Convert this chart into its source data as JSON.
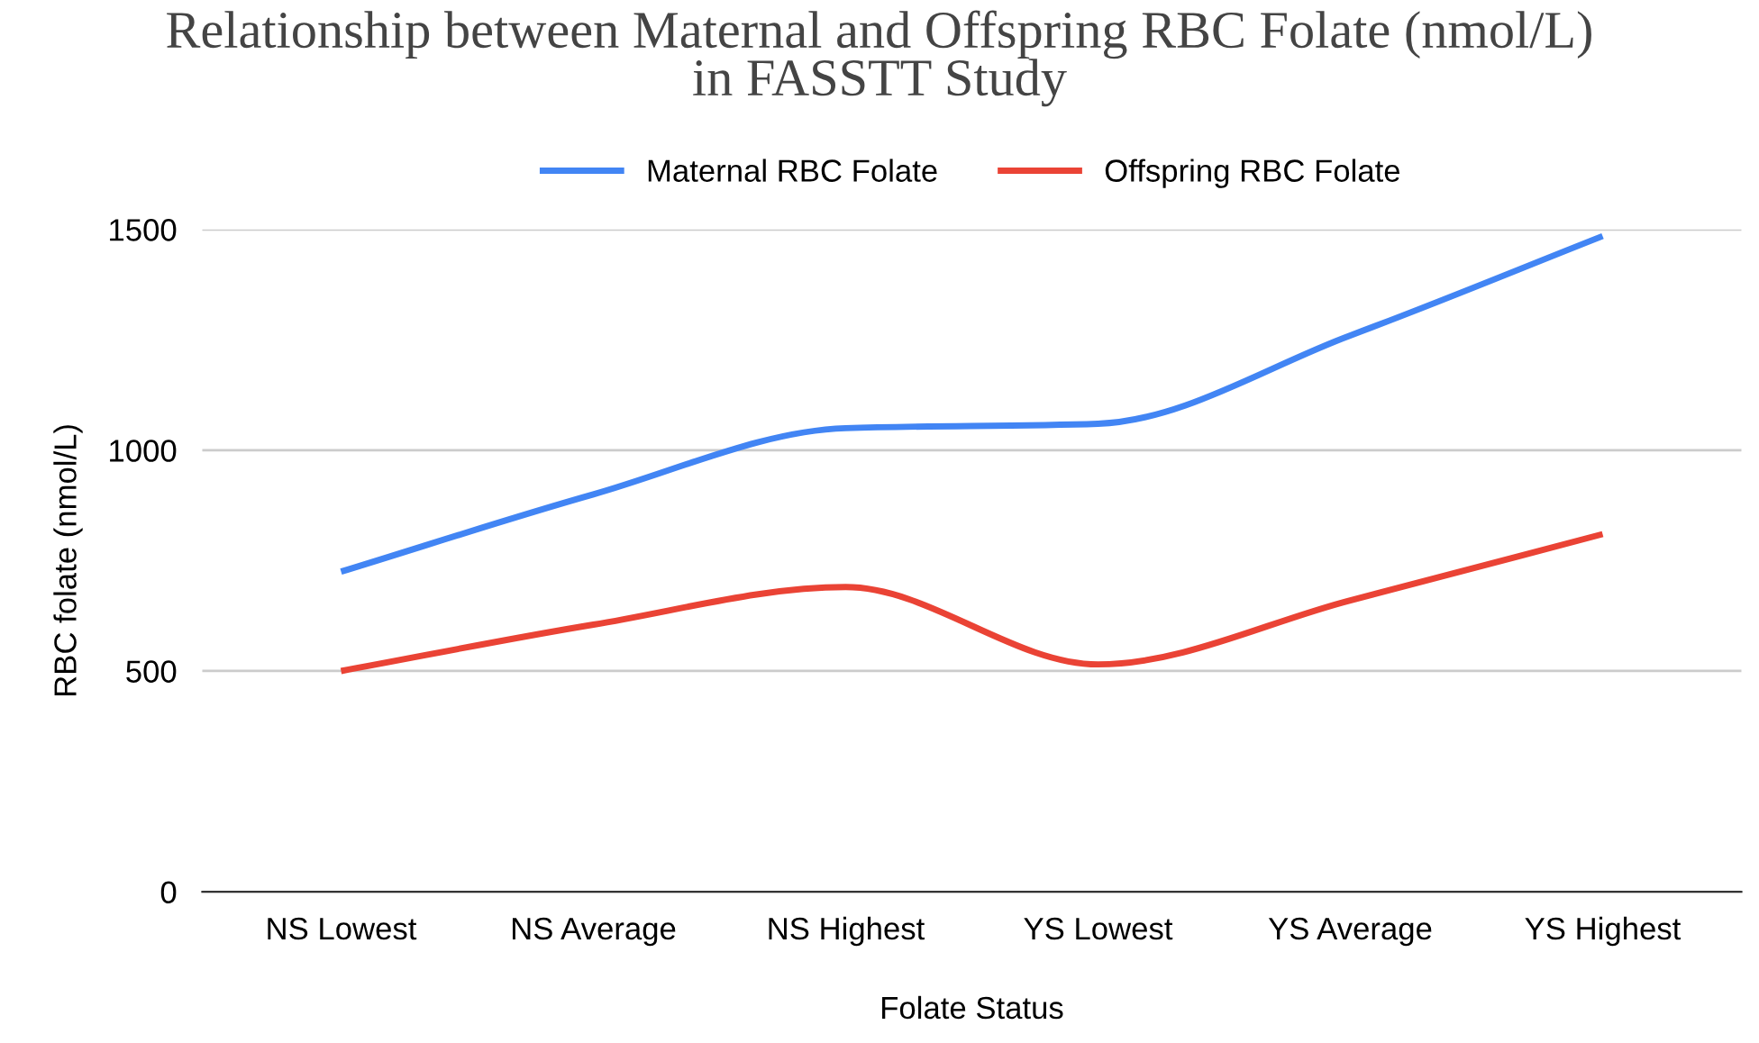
{
  "chart_data": {
    "type": "line",
    "title": "Relationship between Maternal and Offspring RBC Folate (nmol/L)\nin FASSTT Study",
    "xlabel": "Folate Status",
    "ylabel": "RBC folate (nmol/L)",
    "categories": [
      "NS Lowest",
      "NS Average",
      "NS Highest",
      "YS Lowest",
      "YS Average",
      "YS Highest"
    ],
    "series": [
      {
        "name": "Maternal RBC Folate",
        "color": "#4285f4",
        "values": [
          725,
          900,
          1050,
          1060,
          1260,
          1485
        ]
      },
      {
        "name": "Offspring RBC Folate",
        "color": "#ea4335",
        "values": [
          500,
          605,
          690,
          515,
          660,
          810
        ]
      }
    ],
    "ylim": [
      0,
      1500
    ],
    "yticks": [
      0,
      500,
      1000,
      1500
    ],
    "grid": "y",
    "legend": "top",
    "marker": "none",
    "line_style": "solid"
  }
}
